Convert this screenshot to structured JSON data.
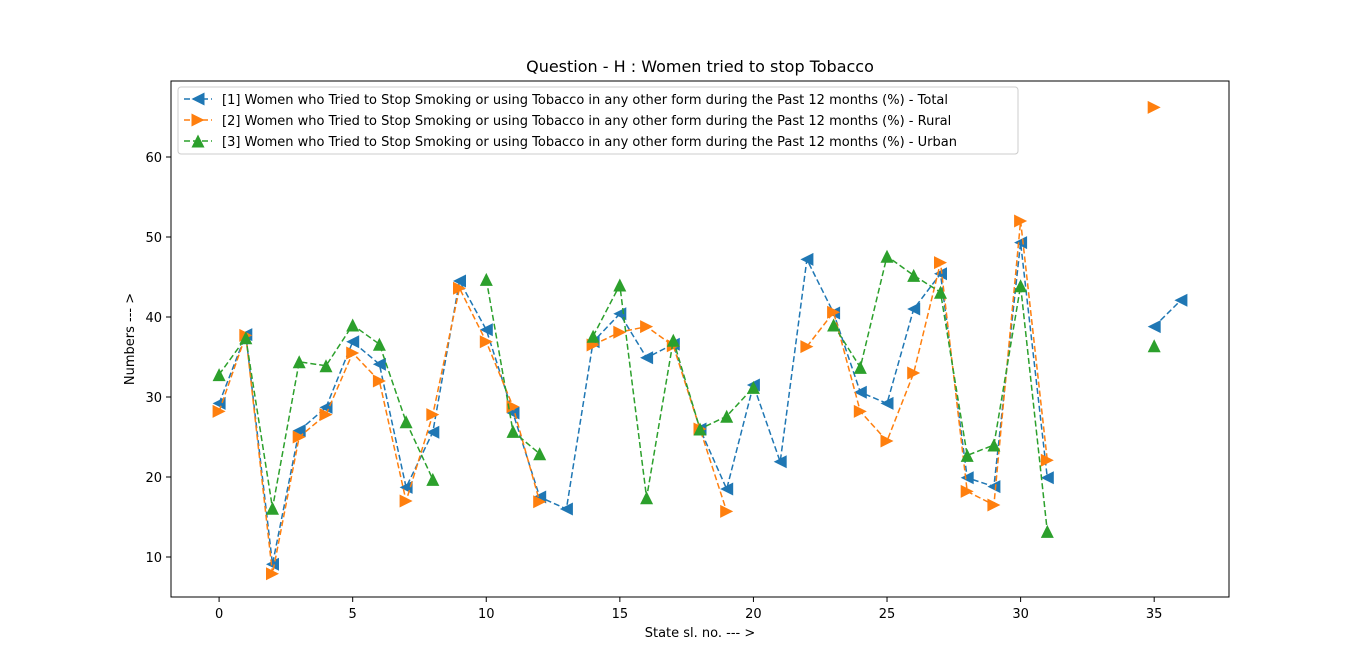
{
  "chart_data": {
    "type": "line",
    "title": "Question - H : Women tried to stop Tobacco",
    "xlabel": "State sl. no. --- >",
    "ylabel": "Numbers --- >",
    "xlim": [
      -1.8,
      37.8
    ],
    "ylim": [
      5,
      69.5
    ],
    "xticks": [
      0,
      5,
      10,
      15,
      20,
      25,
      30,
      35
    ],
    "yticks": [
      10,
      20,
      30,
      40,
      50,
      60
    ],
    "grid": false,
    "legend_position": "upper left",
    "series": [
      {
        "name": "[1] Women who Tried to Stop Smoking or using Tobacco in any other form during the Past 12 months (%) - Total",
        "color": "#1f77b4",
        "marker": "triangle-left",
        "x": [
          0,
          1,
          2,
          3,
          4,
          5,
          6,
          7,
          8,
          9,
          10,
          11,
          12,
          13,
          14,
          15,
          16,
          17,
          18,
          19,
          20,
          21,
          22,
          23,
          24,
          25,
          26,
          27,
          28,
          29,
          30,
          31,
          null,
          null,
          35,
          36
        ],
        "y": [
          29.2,
          37.8,
          9.1,
          25.8,
          28.7,
          36.9,
          34.1,
          18.7,
          25.6,
          44.5,
          38.4,
          28.0,
          17.5,
          16.0,
          36.9,
          40.4,
          34.9,
          36.6,
          26.0,
          18.5,
          31.5,
          21.9,
          47.2,
          40.5,
          30.6,
          29.2,
          41.0,
          45.4,
          19.9,
          18.8,
          49.3,
          19.9,
          null,
          null,
          38.8,
          42.1
        ]
      },
      {
        "name": "[2] Women who Tried to Stop Smoking or using Tobacco in any other form during the Past 12 months (%) - Rural",
        "color": "#ff7f0e",
        "marker": "triangle-right",
        "x": [
          0,
          1,
          2,
          3,
          4,
          5,
          6,
          7,
          8,
          9,
          10,
          11,
          12,
          null,
          14,
          15,
          16,
          17,
          18,
          19,
          null,
          null,
          22,
          23,
          24,
          25,
          26,
          27,
          28,
          29,
          30,
          31,
          null,
          null,
          35
        ],
        "y": [
          28.2,
          37.7,
          7.9,
          25.0,
          27.8,
          35.5,
          32.0,
          17.0,
          27.8,
          43.6,
          36.9,
          28.8,
          16.9,
          null,
          36.5,
          38.1,
          38.8,
          36.4,
          26.0,
          15.7,
          null,
          null,
          36.3,
          40.6,
          28.2,
          24.5,
          33.0,
          46.8,
          18.2,
          16.5,
          52.0,
          22.1,
          null,
          null,
          66.2
        ]
      },
      {
        "name": "[3] Women who Tried to Stop Smoking or using Tobacco in any other form during the Past 12 months (%) - Urban",
        "color": "#2ca02c",
        "marker": "triangle-up",
        "x": [
          0,
          1,
          2,
          3,
          4,
          5,
          6,
          7,
          8,
          null,
          10,
          11,
          12,
          null,
          14,
          15,
          16,
          17,
          18,
          19,
          20,
          null,
          null,
          23,
          24,
          25,
          26,
          27,
          28,
          29,
          30,
          31,
          null,
          null,
          35
        ],
        "y": [
          32.8,
          37.4,
          16.1,
          34.4,
          33.9,
          39.0,
          36.6,
          26.9,
          19.7,
          null,
          44.7,
          25.7,
          22.9,
          null,
          37.6,
          44.0,
          17.4,
          37.1,
          26.0,
          27.6,
          31.2,
          null,
          null,
          39.0,
          33.7,
          47.6,
          45.2,
          43.1,
          22.7,
          24.0,
          43.9,
          13.2,
          null,
          null,
          36.4
        ]
      }
    ]
  }
}
